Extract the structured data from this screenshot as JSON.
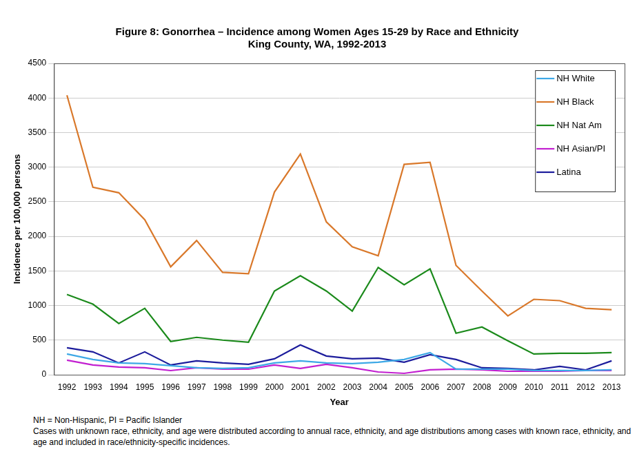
{
  "chart_data": {
    "type": "line",
    "title": "Figure 8: Gonorrhea – Incidence among Women Ages 15-29 by Race and Ethnicity",
    "subtitle": "King County, WA, 1992-2013",
    "x_label": "Year",
    "y_label": "Incidence per 100,000 persons",
    "categories": [
      "1992",
      "1993",
      "1994",
      "1995",
      "1996",
      "1997",
      "1998",
      "1999",
      "2000",
      "2001",
      "2002",
      "2003",
      "2004",
      "2005",
      "2006",
      "2007",
      "2008",
      "2009",
      "2010",
      "2011",
      "2012",
      "2013"
    ],
    "series": [
      {
        "name": "NH White",
        "color": "#3da8e6",
        "values": [
          300,
          220,
          170,
          160,
          130,
          100,
          90,
          100,
          170,
          200,
          170,
          160,
          180,
          220,
          320,
          80,
          80,
          80,
          60,
          60,
          60,
          70
        ]
      },
      {
        "name": "NH Black",
        "color": "#d9782a",
        "values": [
          4040,
          2710,
          2630,
          2240,
          1560,
          1940,
          1480,
          1460,
          2640,
          3190,
          2210,
          1850,
          1720,
          3040,
          3070,
          1580,
          1210,
          850,
          1090,
          1070,
          960,
          940
        ]
      },
      {
        "name": "NH Nat Am",
        "color": "#1b8a1b",
        "values": [
          1160,
          1020,
          740,
          960,
          480,
          540,
          500,
          470,
          1210,
          1430,
          1210,
          920,
          1550,
          1300,
          1530,
          600,
          690,
          490,
          300,
          310,
          310,
          320
        ]
      },
      {
        "name": "NH Asian/PI",
        "color": "#c21fd0",
        "values": [
          210,
          140,
          110,
          100,
          60,
          100,
          80,
          80,
          140,
          90,
          150,
          100,
          40,
          20,
          70,
          80,
          70,
          50,
          50,
          50,
          60,
          60
        ]
      },
      {
        "name": "Latina",
        "color": "#1c1c9c",
        "values": [
          390,
          330,
          170,
          330,
          140,
          200,
          170,
          150,
          230,
          430,
          270,
          230,
          240,
          180,
          290,
          220,
          100,
          90,
          70,
          120,
          70,
          200
        ]
      }
    ],
    "ylim": [
      0,
      4500
    ],
    "yticks": [
      0,
      500,
      1000,
      1500,
      2000,
      2500,
      3000,
      3500,
      4000,
      4500
    ],
    "grid": true,
    "legend": "upper right",
    "annotations": [
      "NH = Non-Hispanic, PI = Pacific Islander",
      "Cases with unknown race, ethnicity, and age were distributed according to annual race, ethnicity, and age distributions among cases with known race, ethnicity, and age and included in race/ethnicity-specific incidences."
    ]
  }
}
